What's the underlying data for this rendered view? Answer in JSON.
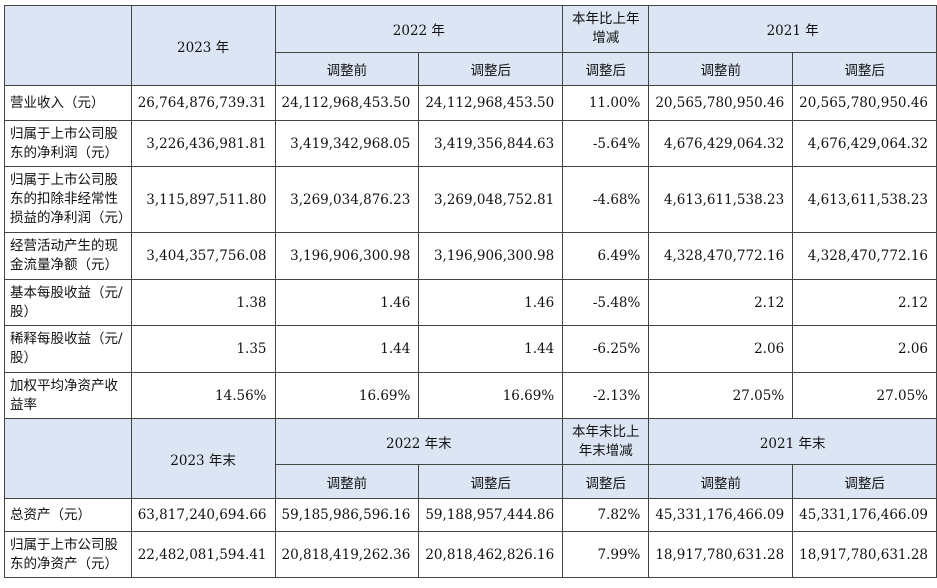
{
  "header1": {
    "y2023": "2023 年",
    "y2022": "2022 年",
    "change": "本年比上年增减",
    "y2021": "2021 年",
    "before": "调整前",
    "after": "调整后",
    "change_after": "调整后"
  },
  "rows1": [
    {
      "label": "营业收入（元）",
      "v2023": "26,764,876,739.31",
      "v2022b": "24,112,968,453.50",
      "v2022a": "24,112,968,453.50",
      "chg": "11.00%",
      "v2021b": "20,565,780,950.46",
      "v2021a": "20,565,780,950.46"
    },
    {
      "label": "归属于上市公司股东的净利润（元）",
      "v2023": "3,226,436,981.81",
      "v2022b": "3,419,342,968.05",
      "v2022a": "3,419,356,844.63",
      "chg": "-5.64%",
      "v2021b": "4,676,429,064.32",
      "v2021a": "4,676,429,064.32"
    },
    {
      "label": "归属于上市公司股东的扣除非经常性损益的净利润（元）",
      "v2023": "3,115,897,511.80",
      "v2022b": "3,269,034,876.23",
      "v2022a": "3,269,048,752.81",
      "chg": "-4.68%",
      "v2021b": "4,613,611,538.23",
      "v2021a": "4,613,611,538.23"
    },
    {
      "label": "经营活动产生的现金流量净额（元）",
      "v2023": "3,404,357,756.08",
      "v2022b": "3,196,906,300.98",
      "v2022a": "3,196,906,300.98",
      "chg": "6.49%",
      "v2021b": "4,328,470,772.16",
      "v2021a": "4,328,470,772.16"
    },
    {
      "label": "基本每股收益（元/股）",
      "v2023": "1.38",
      "v2022b": "1.46",
      "v2022a": "1.46",
      "chg": "-5.48%",
      "v2021b": "2.12",
      "v2021a": "2.12"
    },
    {
      "label": "稀释每股收益（元/股）",
      "v2023": "1.35",
      "v2022b": "1.44",
      "v2022a": "1.44",
      "chg": "-6.25%",
      "v2021b": "2.06",
      "v2021a": "2.06"
    },
    {
      "label": "加权平均净资产收益率",
      "v2023": "14.56%",
      "v2022b": "16.69%",
      "v2022a": "16.69%",
      "chg": "-2.13%",
      "v2021b": "27.05%",
      "v2021a": "27.05%"
    }
  ],
  "header2": {
    "y2023": "2023 年末",
    "y2022": "2022 年末",
    "change": "本年末比上年末增减",
    "y2021": "2021 年末",
    "before": "调整前",
    "after": "调整后",
    "change_after": "调整后"
  },
  "rows2": [
    {
      "label": "总资产（元）",
      "v2023": "63,817,240,694.66",
      "v2022b": "59,185,986,596.16",
      "v2022a": "59,188,957,444.86",
      "chg": "7.82%",
      "v2021b": "45,331,176,466.09",
      "v2021a": "45,331,176,466.09"
    },
    {
      "label": "归属于上市公司股东的净资产（元）",
      "v2023": "22,482,081,594.41",
      "v2022b": "20,818,419,262.36",
      "v2022a": "20,818,462,826.16",
      "chg": "7.99%",
      "v2021b": "18,917,780,631.28",
      "v2021a": "18,917,780,631.28"
    }
  ]
}
